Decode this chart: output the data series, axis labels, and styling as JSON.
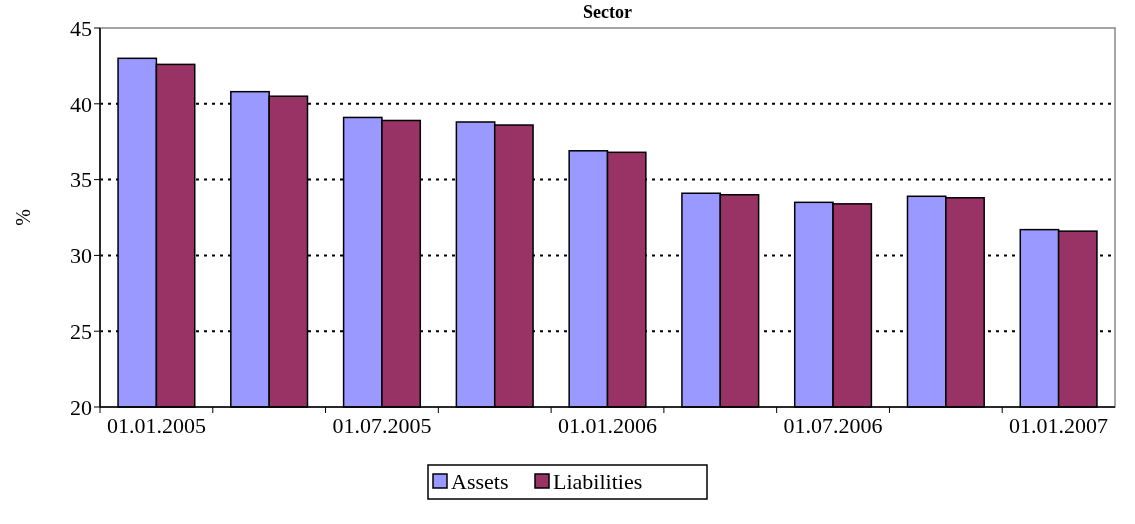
{
  "chart_data": {
    "type": "bar",
    "title": "Sector",
    "ylabel": "%",
    "categories": [
      "01.01.2005",
      null,
      "01.07.2005",
      null,
      "01.01.2006",
      null,
      "01.07.2006",
      null,
      "01.01.2007"
    ],
    "series": [
      {
        "name": "Assets",
        "color": "#9999ff",
        "values": [
          43.0,
          40.8,
          39.1,
          38.8,
          36.9,
          34.1,
          33.5,
          33.9,
          31.7
        ]
      },
      {
        "name": "Liabilities",
        "color": "#993366",
        "values": [
          42.6,
          40.5,
          38.9,
          38.6,
          36.8,
          34.0,
          33.4,
          33.8,
          31.6
        ]
      }
    ],
    "ylim": [
      20,
      45
    ],
    "yticks": [
      20,
      25,
      30,
      35,
      40,
      45
    ],
    "grid": "y",
    "legend": "bottom"
  }
}
